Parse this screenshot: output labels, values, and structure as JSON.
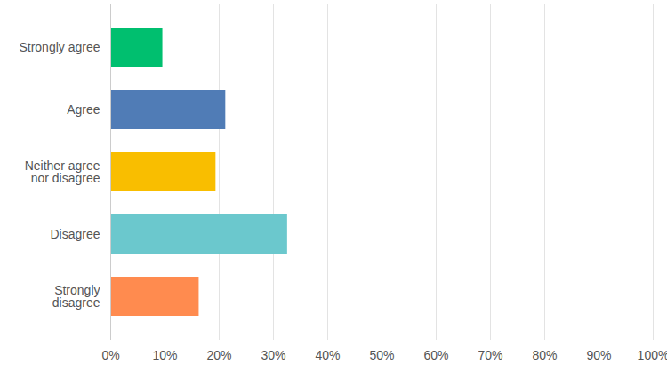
{
  "chart_data": {
    "type": "bar",
    "orientation": "horizontal",
    "categories": [
      "Strongly agree",
      "Agree",
      "Neither agree nor disagree",
      "Disagree",
      "Strongly disagree"
    ],
    "values": [
      9.6,
      21.2,
      19.4,
      32.6,
      16.3
    ],
    "colors": [
      "#00bf6f",
      "#507cb6",
      "#f9be00",
      "#6bc8cd",
      "#ff8b4f"
    ],
    "xlim": [
      0,
      100
    ],
    "xticks": [
      {
        "value": 0,
        "label": "0%"
      },
      {
        "value": 10,
        "label": "10%"
      },
      {
        "value": 20,
        "label": "20%"
      },
      {
        "value": 30,
        "label": "30%"
      },
      {
        "value": 40,
        "label": "40%"
      },
      {
        "value": 50,
        "label": "50%"
      },
      {
        "value": 60,
        "label": "60%"
      },
      {
        "value": 70,
        "label": "70%"
      },
      {
        "value": 80,
        "label": "80%"
      },
      {
        "value": 90,
        "label": "90%"
      },
      {
        "value": 100,
        "label": "100%"
      }
    ],
    "grid": true
  }
}
